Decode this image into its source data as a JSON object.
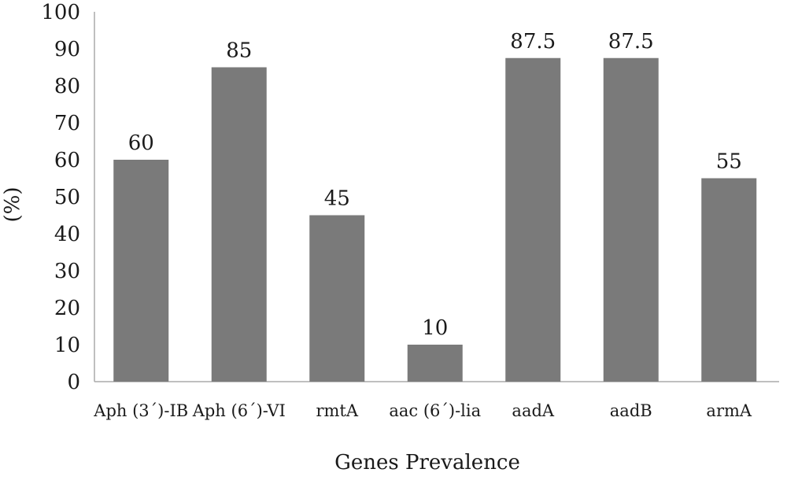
{
  "chart_data": {
    "type": "bar",
    "title": "",
    "xlabel": "Genes Prevalence",
    "ylabel": "(%)",
    "categories": [
      "Aph (3´)-IB",
      "Aph (6´)-VI",
      "rmtA",
      "aac (6´)-lia",
      "aadA",
      "aadB",
      "armA"
    ],
    "values": [
      60,
      85,
      45,
      10,
      87.5,
      87.5,
      55
    ],
    "data_labels": [
      "60",
      "85",
      "45",
      "10",
      "87.5",
      "87.5",
      "55"
    ],
    "ylim": [
      0,
      100
    ],
    "yticks": [
      "0",
      "10",
      "20",
      "30",
      "40",
      "50",
      "60",
      "70",
      "80",
      "90",
      "100"
    ],
    "grid": false,
    "legend": "none",
    "bar_color": "#7a7a7a",
    "axis_color": "#aaaaaa"
  }
}
